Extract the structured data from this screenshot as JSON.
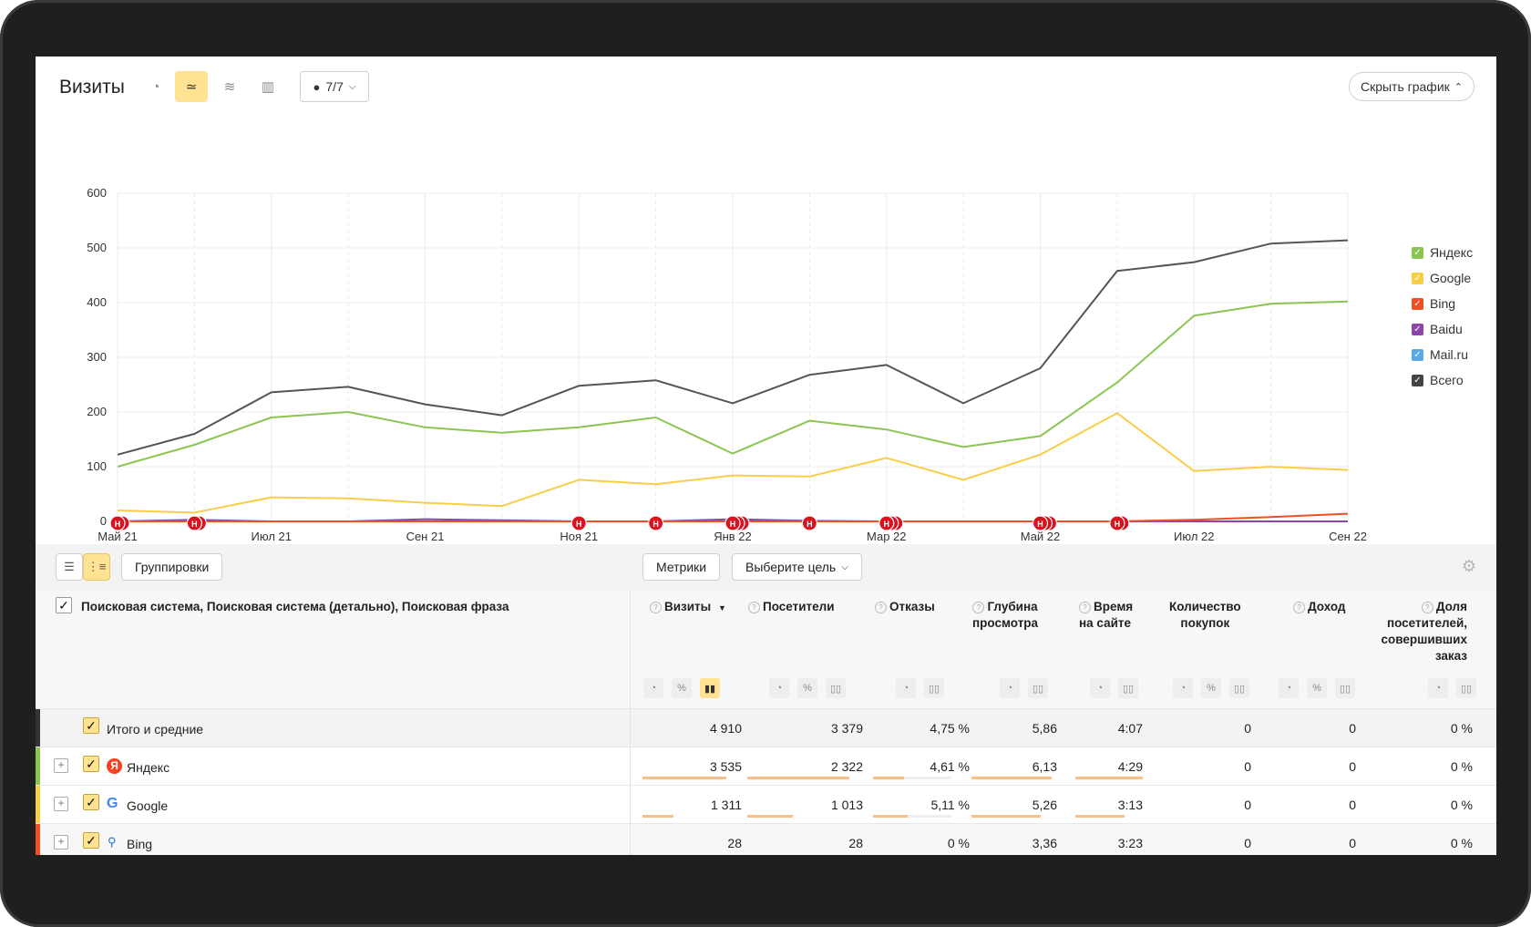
{
  "header": {
    "title": "Визиты",
    "notes_count": "7/7",
    "hide_chart_label": "Скрыть график"
  },
  "chart_data": {
    "type": "line",
    "x": [
      "Май 21",
      "",
      "Июл 21",
      "",
      "Сен 21",
      "",
      "Ноя 21",
      "",
      "Янв 22",
      "",
      "Мар 22",
      "",
      "Май 22",
      "",
      "Июл 22",
      "",
      "Сен 22"
    ],
    "y_ticks": [
      0,
      100,
      200,
      300,
      400,
      500,
      600
    ],
    "ylim": [
      0,
      600
    ],
    "series": [
      {
        "name": "Яндекс",
        "color": "#8cc652",
        "values": [
          100,
          140,
          190,
          200,
          172,
          162,
          172,
          190,
          124,
          184,
          168,
          136,
          156,
          254,
          376,
          398,
          402
        ]
      },
      {
        "name": "Google",
        "color": "#f7ce46",
        "values": [
          20,
          16,
          44,
          42,
          34,
          28,
          76,
          68,
          84,
          82,
          116,
          76,
          122,
          198,
          92,
          100,
          94
        ]
      },
      {
        "name": "Bing",
        "color": "#f04e23",
        "values": [
          0,
          0,
          0,
          0,
          0,
          0,
          0,
          0,
          0,
          0,
          0,
          0,
          0,
          0,
          3,
          8,
          14
        ]
      },
      {
        "name": "Baidu",
        "color": "#8e44ad",
        "values": [
          0,
          3,
          0,
          0,
          4,
          2,
          0,
          0,
          4,
          1,
          0,
          0,
          0,
          0,
          0,
          0,
          0
        ]
      },
      {
        "name": "Mail.ru",
        "color": "#5aa9e6",
        "values": [
          0,
          0,
          0,
          0,
          0,
          0,
          0,
          0,
          0,
          0,
          0,
          0,
          0,
          0,
          0,
          0,
          0
        ]
      },
      {
        "name": "Всего",
        "color": "#555555",
        "values": [
          122,
          160,
          236,
          246,
          214,
          194,
          248,
          258,
          216,
          268,
          286,
          216,
          280,
          458,
          474,
          508,
          514
        ]
      }
    ],
    "x_tick_labels": [
      "Май 21",
      "Июл 21",
      "Сен 21",
      "Ноя 21",
      "Янв 22",
      "Мар 22",
      "Май 22",
      "Июл 22",
      "Сен 22"
    ],
    "note_markers": [
      {
        "x": 0,
        "count": 2
      },
      {
        "x": 1,
        "count": 2
      },
      {
        "x": 6,
        "count": 1
      },
      {
        "x": 7,
        "count": 1
      },
      {
        "x": 8,
        "count": 3
      },
      {
        "x": 9,
        "count": 1
      },
      {
        "x": 10,
        "count": 3
      },
      {
        "x": 12,
        "count": 3
      },
      {
        "x": 13,
        "count": 2
      }
    ],
    "note_label": "Н",
    "legend_placement": "right",
    "grid": true
  },
  "legend": [
    {
      "label": "Яндекс",
      "color": "#8cc652"
    },
    {
      "label": "Google",
      "color": "#f7ce46"
    },
    {
      "label": "Bing",
      "color": "#f04e23"
    },
    {
      "label": "Baidu",
      "color": "#8e44ad"
    },
    {
      "label": "Mail.ru",
      "color": "#5aa9e6"
    },
    {
      "label": "Всего",
      "color": "#444444"
    }
  ],
  "toolbar": {
    "groupings_label": "Группировки",
    "metrics_label": "Метрики",
    "goal_label": "Выберите цель"
  },
  "table": {
    "dimension_header": "Поисковая система, Поисковая система (детально), Поисковая фраза",
    "columns": {
      "visits": "Визиты",
      "visitors": "Посетители",
      "bounces": "Отказы",
      "depth_1": "Глубина",
      "depth_2": "просмотра",
      "time_1": "Время",
      "time_2": "на сайте",
      "purchases_1": "Количество",
      "purchases_2": "покупок",
      "revenue": "Доход",
      "share_1": "Доля",
      "share_2": "посетителей,",
      "share_3": "совершивших",
      "share_4": "заказ"
    },
    "sort_indicator": "▼",
    "rows": [
      {
        "label": "Итого и средние",
        "visits": "4 910",
        "visitors": "3 379",
        "bounces": "4,75 %",
        "depth": "5,86",
        "time": "4:07",
        "purchases": "0",
        "revenue": "0",
        "share": "0 %"
      },
      {
        "label": "Яндекс",
        "visits": "3 535",
        "visitors": "2 322",
        "bounces": "4,61 %",
        "depth": "6,13",
        "time": "4:29",
        "purchases": "0",
        "revenue": "0",
        "share": "0 %",
        "color": "#8cc652",
        "icon": "yandex-icon"
      },
      {
        "label": "Google",
        "visits": "1 311",
        "visitors": "1 013",
        "bounces": "5,11 %",
        "depth": "5,26",
        "time": "3:13",
        "purchases": "0",
        "revenue": "0",
        "share": "0 %",
        "color": "#f7ce46",
        "icon": "google-icon"
      },
      {
        "label": "Bing",
        "visits": "28",
        "visitors": "28",
        "bounces": "0 %",
        "depth": "3,36",
        "time": "3:23",
        "purchases": "0",
        "revenue": "0",
        "share": "0 %",
        "color": "#f04e23",
        "icon": "bing-icon"
      }
    ]
  }
}
